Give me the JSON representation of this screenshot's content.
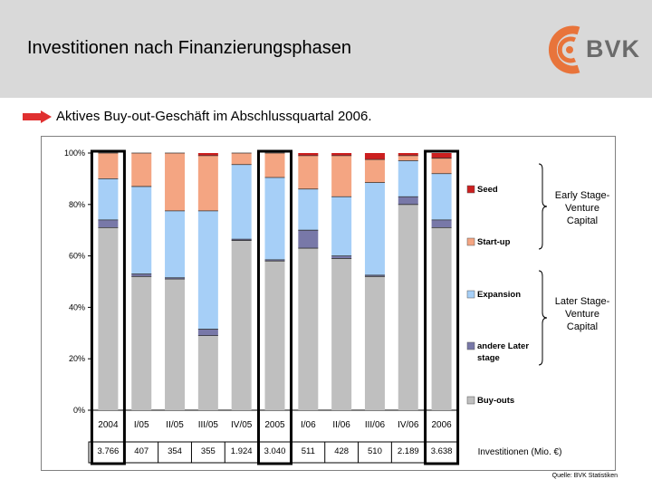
{
  "header": {
    "title": "Investitionen nach Finanzierungsphasen",
    "logo_text": "BVK"
  },
  "subtitle": "Aktives Buy-out-Geschäft im Abschlussquartal 2006.",
  "source": "Quelle: BVK Statistiken",
  "colors": {
    "seed": "#cc1f1f",
    "startup": "#f4a582",
    "expansion": "#a6cff7",
    "later": "#7878a8",
    "buyouts": "#bfbfbf",
    "arrow": "#e03030",
    "logo": "#e8743b"
  },
  "chart_data": {
    "type": "bar",
    "stacked": true,
    "percent": true,
    "categories": [
      "2004",
      "I/05",
      "II/05",
      "III/05",
      "IV/05",
      "2005",
      "I/06",
      "II/06",
      "III/06",
      "IV/06",
      "2006"
    ],
    "series": [
      {
        "name": "Buy-outs",
        "key": "buyouts",
        "values": [
          71,
          52,
          51,
          29,
          66,
          58,
          63,
          59,
          52,
          80,
          71
        ]
      },
      {
        "name": "andere Later stage",
        "key": "later",
        "values": [
          3,
          1,
          0.5,
          2.5,
          0.5,
          0.5,
          7,
          1,
          0.5,
          3,
          3
        ]
      },
      {
        "name": "Expansion",
        "key": "expansion",
        "values": [
          16,
          34,
          26,
          46,
          29,
          32,
          16,
          23,
          36,
          14,
          18
        ]
      },
      {
        "name": "Start-up",
        "key": "startup",
        "values": [
          10,
          13,
          22.5,
          21.5,
          4.5,
          9.5,
          13,
          16,
          9,
          2,
          6
        ]
      },
      {
        "name": "Seed",
        "key": "seed",
        "values": [
          0,
          0,
          0,
          1,
          0,
          0,
          1,
          1,
          2.5,
          1,
          2
        ]
      }
    ],
    "yticks": [
      "0%",
      "20%",
      "40%",
      "60%",
      "80%",
      "100%"
    ],
    "ylim": [
      0,
      100
    ],
    "legend": [
      {
        "key": "seed",
        "label": "Seed"
      },
      {
        "key": "startup",
        "label": "Start-up"
      },
      {
        "key": "expansion",
        "label": "Expansion"
      },
      {
        "key": "later",
        "label": "andere Later stage"
      },
      {
        "key": "buyouts",
        "label": "Buy-outs"
      }
    ],
    "brace_labels": [
      "Early Stage-Venture Capital",
      "Later Stage-Venture Capital"
    ],
    "investments": [
      "3.766",
      "407",
      "354",
      "355",
      "1.924",
      "3.040",
      "511",
      "428",
      "510",
      "2.189",
      "3.638"
    ],
    "investments_label": "Investitionen (Mio. €)",
    "highlighted": [
      "2004",
      "2005",
      "2006"
    ]
  }
}
